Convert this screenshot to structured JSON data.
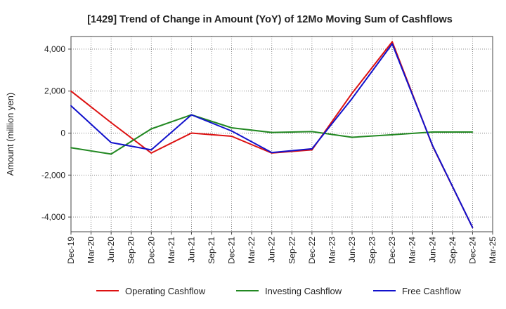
{
  "chart_data": {
    "type": "line",
    "title": "[1429]  Trend of Change in Amount (YoY) of 12Mo Moving Sum of Cashflows",
    "xlabel": "",
    "ylabel": "Amount (million yen)",
    "categories": [
      "Dec-19",
      "Mar-20",
      "Jun-20",
      "Sep-20",
      "Dec-20",
      "Mar-21",
      "Jun-21",
      "Sep-21",
      "Dec-21",
      "Mar-22",
      "Jun-22",
      "Sep-22",
      "Dec-22",
      "Mar-23",
      "Jun-23",
      "Sep-23",
      "Dec-23",
      "Mar-24",
      "Jun-24",
      "Sep-24",
      "Dec-24",
      "Mar-25"
    ],
    "y_ticks": [
      4000,
      2000,
      0,
      -2000,
      -4000
    ],
    "y_tick_labels": [
      "4,000",
      "2,000",
      "0",
      "-2,000",
      "-4,000"
    ],
    "ylim": [
      -4700,
      4600
    ],
    "grid": true,
    "legend_position": "bottom",
    "series": [
      {
        "name": "Operating Cashflow",
        "color": "#dd1111",
        "values": [
          2000,
          null,
          500,
          null,
          -950,
          null,
          0,
          null,
          -150,
          null,
          -950,
          null,
          -800,
          null,
          1900,
          null,
          4350,
          null,
          -600,
          null,
          -4500,
          null
        ]
      },
      {
        "name": "Investing Cashflow",
        "color": "#228822",
        "values": [
          -700,
          null,
          -1000,
          null,
          200,
          null,
          870,
          null,
          250,
          null,
          30,
          null,
          70,
          null,
          -200,
          null,
          -80,
          null,
          50,
          null,
          50,
          null
        ]
      },
      {
        "name": "Free Cashflow",
        "color": "#1111cc",
        "values": [
          1300,
          null,
          -450,
          null,
          -800,
          null,
          870,
          null,
          100,
          null,
          -930,
          null,
          -750,
          null,
          1650,
          null,
          4250,
          null,
          -580,
          null,
          -4500,
          null
        ]
      }
    ]
  }
}
